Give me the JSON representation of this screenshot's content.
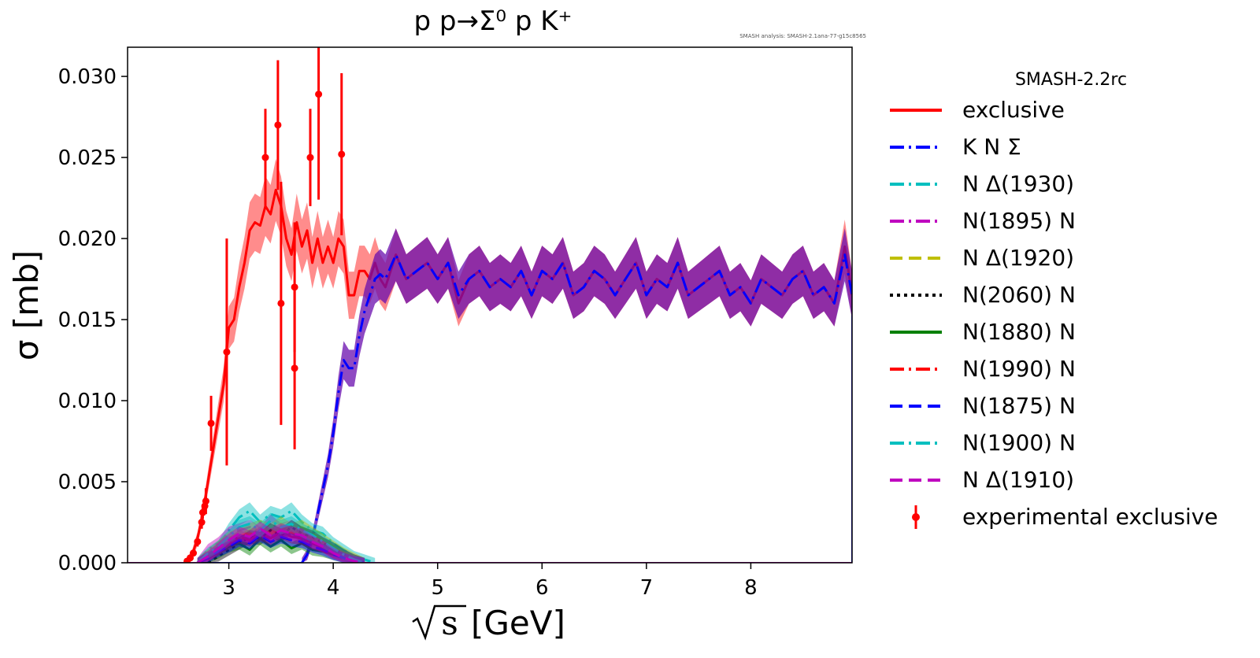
{
  "chart_data": {
    "type": "line",
    "title": "p p→Σ⁰ p K⁺",
    "note": "SMASH analysis: SMASH-2.1ana-77-g15c8565",
    "xlabel_unit": "[GeV]",
    "xlabel_symbol": "s",
    "ylabel": "σ [mb]",
    "xlim": [
      2.03,
      8.97
    ],
    "ylim": [
      0.0,
      0.0318
    ],
    "x_ticks": [
      3,
      4,
      5,
      6,
      7,
      8
    ],
    "y_ticks": [
      0.0,
      0.005,
      0.01,
      0.015,
      0.02,
      0.025,
      0.03
    ],
    "x_tick_labels": [
      "3",
      "4",
      "5",
      "6",
      "7",
      "8"
    ],
    "y_tick_labels": [
      "0.000",
      "0.005",
      "0.010",
      "0.015",
      "0.020",
      "0.025",
      "0.030"
    ],
    "legend_title": "SMASH-2.2rc",
    "legend_position": "outside-right",
    "grid": false,
    "series": [
      {
        "name": "exclusive",
        "color": "#ff0000",
        "dash": "solid",
        "band": true,
        "x": [
          2.6,
          2.65,
          2.7,
          2.75,
          2.8,
          2.85,
          2.9,
          2.95,
          3.0,
          3.05,
          3.1,
          3.15,
          3.2,
          3.25,
          3.3,
          3.35,
          3.4,
          3.45,
          3.5,
          3.55,
          3.6,
          3.65,
          3.7,
          3.75,
          3.8,
          3.85,
          3.9,
          3.95,
          4.0,
          4.05,
          4.1,
          4.15,
          4.2,
          4.25,
          4.3,
          4.35,
          4.4,
          4.45,
          4.5,
          4.6,
          4.7,
          4.8,
          4.9,
          5.0,
          5.1,
          5.2,
          5.3,
          5.4,
          5.5,
          5.6,
          5.7,
          5.8,
          5.9,
          6.0,
          6.1,
          6.2,
          6.3,
          6.4,
          6.5,
          6.6,
          6.7,
          6.8,
          6.9,
          7.0,
          7.1,
          7.2,
          7.3,
          7.4,
          7.5,
          7.6,
          7.7,
          7.8,
          7.9,
          8.0,
          8.1,
          8.2,
          8.3,
          8.4,
          8.5,
          8.6,
          8.7,
          8.8,
          8.9,
          8.97
        ],
        "y": [
          0.0,
          0.0005,
          0.0015,
          0.003,
          0.005,
          0.007,
          0.009,
          0.011,
          0.0145,
          0.015,
          0.017,
          0.0185,
          0.0205,
          0.021,
          0.0208,
          0.022,
          0.0215,
          0.023,
          0.022,
          0.02,
          0.019,
          0.021,
          0.0195,
          0.0205,
          0.0185,
          0.02,
          0.0185,
          0.0195,
          0.0185,
          0.02,
          0.0195,
          0.0165,
          0.0165,
          0.018,
          0.018,
          0.0175,
          0.0185,
          0.0175,
          0.017,
          0.019,
          0.0175,
          0.018,
          0.0185,
          0.0175,
          0.0185,
          0.016,
          0.0175,
          0.018,
          0.017,
          0.0175,
          0.017,
          0.018,
          0.0165,
          0.018,
          0.0175,
          0.0185,
          0.0165,
          0.017,
          0.018,
          0.0175,
          0.0165,
          0.0175,
          0.0185,
          0.0165,
          0.0175,
          0.017,
          0.0185,
          0.0165,
          0.017,
          0.0175,
          0.018,
          0.0165,
          0.017,
          0.016,
          0.0175,
          0.017,
          0.0165,
          0.0175,
          0.018,
          0.0165,
          0.017,
          0.016,
          0.0195,
          0.0165
        ]
      },
      {
        "name": "K N Σ",
        "color": "#0000ff",
        "dash": "dashdot",
        "band": true,
        "x": [
          3.7,
          3.75,
          3.8,
          3.85,
          3.9,
          3.95,
          4.0,
          4.05,
          4.1,
          4.15,
          4.2,
          4.25,
          4.3,
          4.35,
          4.4,
          4.45,
          4.5,
          4.6,
          4.7,
          4.8,
          4.9,
          5.0,
          5.1,
          5.2,
          5.3,
          5.4,
          5.5,
          5.6,
          5.7,
          5.8,
          5.9,
          6.0,
          6.1,
          6.2,
          6.3,
          6.4,
          6.5,
          6.6,
          6.7,
          6.8,
          6.9,
          7.0,
          7.1,
          7.2,
          7.3,
          7.4,
          7.5,
          7.6,
          7.7,
          7.8,
          7.9,
          8.0,
          8.1,
          8.2,
          8.3,
          8.4,
          8.5,
          8.6,
          8.7,
          8.8,
          8.9,
          8.97
        ],
        "y": [
          0.0,
          0.0005,
          0.0015,
          0.003,
          0.0045,
          0.006,
          0.008,
          0.0105,
          0.0125,
          0.012,
          0.012,
          0.014,
          0.0155,
          0.0165,
          0.0175,
          0.0178,
          0.0175,
          0.019,
          0.0175,
          0.018,
          0.0185,
          0.0175,
          0.0185,
          0.0165,
          0.0175,
          0.018,
          0.017,
          0.0175,
          0.017,
          0.018,
          0.0165,
          0.018,
          0.0175,
          0.0185,
          0.0165,
          0.017,
          0.018,
          0.0175,
          0.0165,
          0.0175,
          0.0185,
          0.0165,
          0.0175,
          0.017,
          0.0185,
          0.0165,
          0.017,
          0.0175,
          0.018,
          0.0165,
          0.017,
          0.016,
          0.0175,
          0.017,
          0.0165,
          0.0175,
          0.018,
          0.0165,
          0.017,
          0.016,
          0.019,
          0.0165
        ]
      },
      {
        "name": "N Δ(1930)",
        "color": "#00bfbf",
        "dash": "dashdot",
        "band": true,
        "x": [
          2.7,
          2.8,
          2.9,
          3.0,
          3.1,
          3.2,
          3.3,
          3.4,
          3.5,
          3.6,
          3.7,
          3.8,
          3.9,
          4.0,
          4.1,
          4.2,
          4.3,
          4.4
        ],
        "y": [
          0.0,
          0.0005,
          0.001,
          0.002,
          0.0028,
          0.0032,
          0.0025,
          0.003,
          0.0028,
          0.0032,
          0.0025,
          0.002,
          0.0018,
          0.0012,
          0.0008,
          0.0004,
          0.0002,
          0.0
        ]
      },
      {
        "name": "N(1895) N",
        "color": "#bf00bf",
        "dash": "dashdot",
        "band": true,
        "x": [
          2.7,
          2.8,
          2.9,
          3.0,
          3.1,
          3.2,
          3.3,
          3.4,
          3.5,
          3.6,
          3.7,
          3.8,
          3.9,
          4.0,
          4.1,
          4.2,
          4.3
        ],
        "y": [
          0.0,
          0.0008,
          0.0012,
          0.0018,
          0.002,
          0.0022,
          0.0018,
          0.0025,
          0.002,
          0.0022,
          0.0018,
          0.0015,
          0.0012,
          0.0008,
          0.0005,
          0.0002,
          0.0
        ]
      },
      {
        "name": "N Δ(1920)",
        "color": "#bfbf00",
        "dash": "dashed",
        "band": true,
        "x": [
          2.7,
          2.8,
          2.9,
          3.0,
          3.1,
          3.2,
          3.3,
          3.4,
          3.5,
          3.6,
          3.7,
          3.8,
          3.9,
          4.0,
          4.1,
          4.2,
          4.3
        ],
        "y": [
          0.0,
          0.0005,
          0.001,
          0.0015,
          0.0018,
          0.002,
          0.0022,
          0.002,
          0.0024,
          0.002,
          0.0022,
          0.0018,
          0.0014,
          0.001,
          0.0006,
          0.0003,
          0.0
        ]
      },
      {
        "name": "N(2060) N",
        "color": "#000000",
        "dash": "dotted",
        "band": true,
        "x": [
          2.8,
          2.9,
          3.0,
          3.1,
          3.2,
          3.3,
          3.4,
          3.5,
          3.6,
          3.7,
          3.8,
          3.9,
          4.0,
          4.1,
          4.2,
          4.3
        ],
        "y": [
          0.0,
          0.0004,
          0.0008,
          0.0012,
          0.0016,
          0.0015,
          0.002,
          0.0017,
          0.0022,
          0.0018,
          0.0016,
          0.0012,
          0.0009,
          0.0005,
          0.0002,
          0.0
        ]
      },
      {
        "name": "N(1880) N",
        "color": "#008000",
        "dash": "solid",
        "band": true,
        "x": [
          2.7,
          2.8,
          2.9,
          3.0,
          3.1,
          3.2,
          3.3,
          3.4,
          3.5,
          3.6,
          3.7,
          3.8,
          3.9,
          4.0,
          4.1,
          4.2,
          4.3
        ],
        "y": [
          0.0,
          0.0003,
          0.0006,
          0.001,
          0.0012,
          0.0008,
          0.0015,
          0.001,
          0.0014,
          0.0009,
          0.0012,
          0.0008,
          0.0007,
          0.0005,
          0.0003,
          0.0001,
          0.0
        ]
      },
      {
        "name": "N(1990) N",
        "color": "#ff0000",
        "dash": "dashdot",
        "band": true,
        "x": [
          2.7,
          2.8,
          2.9,
          3.0,
          3.1,
          3.2,
          3.3,
          3.4,
          3.5,
          3.6,
          3.7,
          3.8,
          3.9,
          4.0,
          4.1,
          4.2,
          4.3
        ],
        "y": [
          0.0,
          0.0004,
          0.0008,
          0.0012,
          0.0016,
          0.0014,
          0.0018,
          0.0015,
          0.0019,
          0.0016,
          0.0015,
          0.0012,
          0.001,
          0.0006,
          0.0004,
          0.0002,
          0.0
        ]
      },
      {
        "name": "N(1875) N",
        "color": "#0000ff",
        "dash": "dashed",
        "band": true,
        "x": [
          2.7,
          2.8,
          2.9,
          3.0,
          3.1,
          3.2,
          3.3,
          3.4,
          3.5,
          3.6,
          3.7,
          3.8,
          3.9,
          4.0,
          4.1,
          4.2,
          4.3
        ],
        "y": [
          0.0,
          0.0003,
          0.0007,
          0.001,
          0.0014,
          0.0012,
          0.0017,
          0.0013,
          0.0016,
          0.0014,
          0.0013,
          0.001,
          0.0008,
          0.0005,
          0.0003,
          0.0001,
          0.0
        ]
      },
      {
        "name": "N(1900) N",
        "color": "#00bfbf",
        "dash": "dashdot",
        "band": true,
        "x": [
          2.7,
          2.8,
          2.9,
          3.0,
          3.1,
          3.2,
          3.3,
          3.4,
          3.5,
          3.6,
          3.7,
          3.8,
          3.9,
          4.0,
          4.1,
          4.2,
          4.3
        ],
        "y": [
          0.0,
          0.0006,
          0.001,
          0.0016,
          0.0022,
          0.0024,
          0.002,
          0.0026,
          0.0022,
          0.0024,
          0.002,
          0.0017,
          0.0013,
          0.0009,
          0.0005,
          0.0002,
          0.0
        ]
      },
      {
        "name": "N Δ(1910)",
        "color": "#bf00bf",
        "dash": "dashed",
        "band": true,
        "x": [
          2.7,
          2.8,
          2.9,
          3.0,
          3.1,
          3.2,
          3.3,
          3.4,
          3.5,
          3.6,
          3.7,
          3.8,
          3.9,
          4.0,
          4.1,
          4.2,
          4.3
        ],
        "y": [
          0.0,
          0.0004,
          0.0009,
          0.0014,
          0.0018,
          0.0016,
          0.0021,
          0.0017,
          0.002,
          0.0018,
          0.0017,
          0.0013,
          0.001,
          0.0006,
          0.0003,
          0.0001,
          0.0
        ]
      }
    ],
    "experimental": {
      "name": "experimental exclusive",
      "color": "#ff0000",
      "points": [
        {
          "x": 2.6,
          "y": 0.0001,
          "err": 0.0001
        },
        {
          "x": 2.63,
          "y": 0.0003,
          "err": 0.0001
        },
        {
          "x": 2.66,
          "y": 0.0006,
          "err": 0.0002
        },
        {
          "x": 2.7,
          "y": 0.0013,
          "err": 0.0003
        },
        {
          "x": 2.74,
          "y": 0.0025,
          "err": 0.0004
        },
        {
          "x": 2.75,
          "y": 0.0031,
          "err": 0.0004
        },
        {
          "x": 2.77,
          "y": 0.0035,
          "err": 0.0005
        },
        {
          "x": 2.78,
          "y": 0.0038,
          "err": 0.0008
        },
        {
          "x": 2.83,
          "y": 0.0086,
          "err": 0.0017
        },
        {
          "x": 2.98,
          "y": 0.013,
          "err": 0.007
        },
        {
          "x": 3.35,
          "y": 0.025,
          "err": 0.003
        },
        {
          "x": 3.47,
          "y": 0.027,
          "err": 0.004
        },
        {
          "x": 3.5,
          "y": 0.016,
          "err": 0.0075
        },
        {
          "x": 3.63,
          "y": 0.017,
          "err": 0.004
        },
        {
          "x": 3.63,
          "y": 0.012,
          "err": 0.005
        },
        {
          "x": 3.78,
          "y": 0.025,
          "err": 0.003
        },
        {
          "x": 3.86,
          "y": 0.0289,
          "err": 0.0065
        },
        {
          "x": 4.08,
          "y": 0.0252,
          "err": 0.005
        }
      ]
    }
  }
}
